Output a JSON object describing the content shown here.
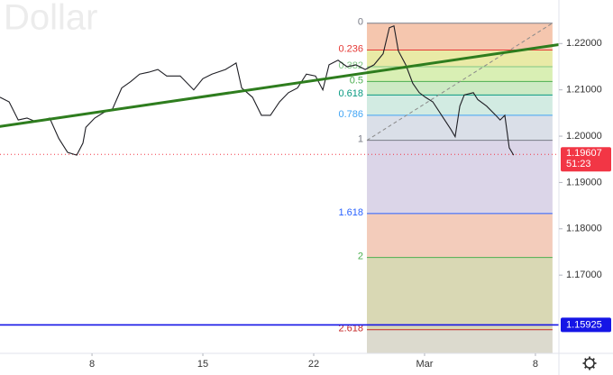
{
  "chart_data": {
    "type": "line",
    "title": "Dollar",
    "x": [
      -4.15,
      -3.74,
      -3.33,
      -2.93,
      -2.52,
      -1.91,
      -1.5,
      -1.1,
      -0.69,
      -0.41,
      -0.28,
      0.12,
      0.53,
      0.93,
      1.34,
      1.75,
      2.15,
      2.56,
      2.97,
      3.37,
      3.98,
      4.59,
      5,
      5.41,
      6.02,
      6.5,
      6.75,
      7.24,
      7.64,
      8.05,
      8.46,
      8.86,
      9.27,
      9.67,
      10.08,
      10.41,
      10.69,
      11.1,
      11.5,
      11.91,
      12.32,
      12.72,
      13.13,
      13.41,
      13.62,
      13.82,
      14.15,
      14.47,
      14.76,
      15.04,
      15.37,
      15.77,
      16.18,
      16.38,
      16.59,
      16.79,
      17.2,
      17.4,
      17.8,
      18.21,
      18.41,
      18.62,
      18.82,
      19.02
    ],
    "values": [
      1.2084,
      1.2074,
      1.2035,
      1.2039,
      1.2031,
      1.2039,
      1.1995,
      1.1965,
      1.1959,
      1.1985,
      1.2019,
      1.2039,
      1.2051,
      1.2059,
      1.2104,
      1.2118,
      1.2134,
      1.2138,
      1.2144,
      1.213,
      1.213,
      1.21,
      1.2124,
      1.2134,
      1.2144,
      1.2158,
      1.2104,
      1.2084,
      1.2045,
      1.2045,
      1.2074,
      1.2094,
      1.2104,
      1.2134,
      1.213,
      1.21,
      1.2154,
      1.2164,
      1.215,
      1.2154,
      1.2144,
      1.2154,
      1.2178,
      1.2234,
      1.2238,
      1.2184,
      1.2154,
      1.2114,
      1.2094,
      1.2084,
      1.2074,
      1.2045,
      1.2015,
      1.1999,
      1.2065,
      1.2089,
      1.2094,
      1.2079,
      1.2065,
      1.2045,
      1.2035,
      1.2045,
      1.1975,
      1.1959
    ],
    "color": "#1e1e24",
    "xlim": [
      -4.15,
      21.06
    ],
    "xticks": [
      {
        "value": 0,
        "label": "8"
      },
      {
        "value": 5,
        "label": "15"
      },
      {
        "value": 10,
        "label": "22"
      },
      {
        "value": 15,
        "label": "Mar"
      },
      {
        "value": 20,
        "label": "8"
      }
    ],
    "ylim": [
      1.1531,
      1.2294
    ],
    "yticks": [
      {
        "value": 1.17,
        "label": "1.17000"
      },
      {
        "value": 1.18,
        "label": "1.18000"
      },
      {
        "value": 1.19,
        "label": "1.19000"
      },
      {
        "value": 1.2,
        "label": "1.20000"
      },
      {
        "value": 1.21,
        "label": "1.21000"
      },
      {
        "value": 1.22,
        "label": "1.22000"
      }
    ],
    "fib_x": [
      12.4,
      20.77
    ],
    "fib_levels": [
      {
        "ratio": 0,
        "price": 1.2244,
        "color": "#787b86",
        "fill": "#f5c6ae"
      },
      {
        "ratio": 0.236,
        "price": 1.2186,
        "color": "#e53935",
        "fill": "#e9eaa6"
      },
      {
        "ratio": 0.382,
        "price": 1.215,
        "color": "#81c784",
        "fill": "#d9efb4"
      },
      {
        "ratio": 0.5,
        "price": 1.2118,
        "color": "#4caf50",
        "fill": "#cdeac4"
      },
      {
        "ratio": 0.618,
        "price": 1.2089,
        "color": "#089981",
        "fill": "#d2ebe2"
      },
      {
        "ratio": 0.786,
        "price": 1.2045,
        "color": "#42a5f5",
        "fill": "#dadfe8"
      },
      {
        "ratio": 1,
        "price": 1.1991,
        "color": "#787b86",
        "fill": "#dbd5e8"
      },
      {
        "ratio": 1.618,
        "price": 1.1833,
        "color": "#2962ff",
        "fill": "#f3ccbb"
      },
      {
        "ratio": 2,
        "price": 1.1738,
        "color": "#4caf50",
        "fill": "#d9d8b4"
      },
      {
        "ratio": 2.618,
        "price": 1.1582,
        "color": "#c62828",
        "fill": "#dcdace"
      }
    ],
    "trend_line": {
      "x": [
        -4.15,
        21.4
      ],
      "values": [
        1.2021,
        1.22
      ],
      "color": "#2e7d1e"
    },
    "horizontal_line": {
      "value": 1.15925,
      "label": "1.15925",
      "color": "#1515e6"
    },
    "last_price": {
      "value": 1.19607,
      "label": "1.19607",
      "countdown": "51:23",
      "color": "#f23645"
    }
  }
}
